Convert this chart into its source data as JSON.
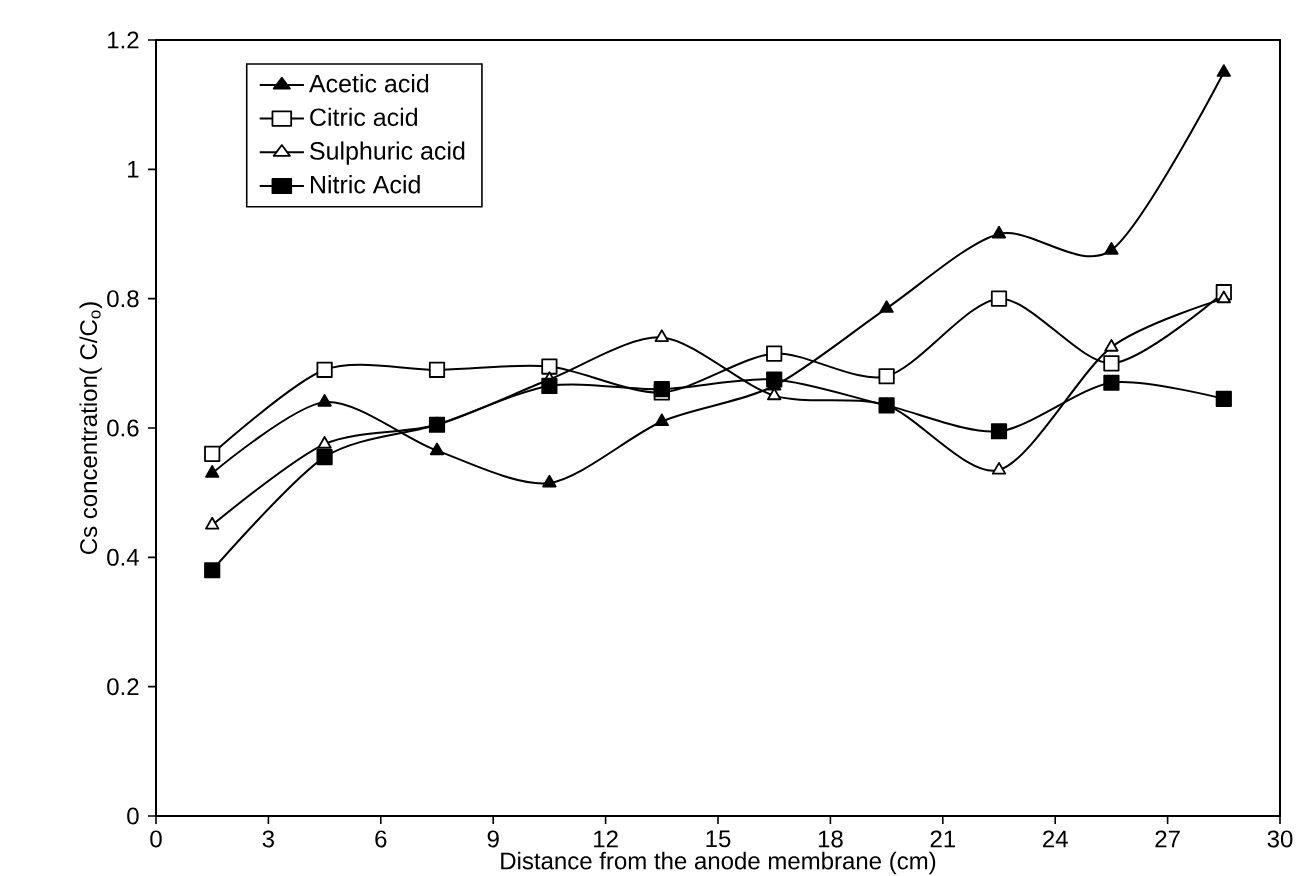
{
  "chart_data": {
    "type": "line",
    "xlabel": "Distance from the anode membrane (cm)",
    "ylabel": "Cs concentration( C/C$_{o}$)",
    "x": [
      1.5,
      4.5,
      7.5,
      10.5,
      13.5,
      16.5,
      19.5,
      22.5,
      25.5,
      28.5
    ],
    "series": [
      {
        "name": "Acetic acid",
        "color": "#000000",
        "marker": "triangle",
        "values": [
          0.53,
          0.64,
          0.565,
          0.515,
          0.61,
          0.665,
          0.785,
          0.9,
          0.875,
          1.15
        ]
      },
      {
        "name": "Citric acid",
        "color": "#000000",
        "marker": "square",
        "values": [
          0.56,
          0.69,
          0.69,
          0.695,
          0.655,
          0.715,
          0.68,
          0.8,
          0.7,
          0.81
        ]
      },
      {
        "name": "Sulphuric acid",
        "color": "#000000",
        "marker": "triangle",
        "values": [
          0.45,
          0.575,
          0.605,
          0.675,
          0.74,
          0.65,
          0.635,
          0.535,
          0.725,
          0.8
        ]
      },
      {
        "name": "Nitric Acid",
        "color": "#000000",
        "marker": "square",
        "values": [
          0.38,
          0.555,
          0.605,
          0.665,
          0.66,
          0.675,
          0.635,
          0.595,
          0.67,
          0.645
        ]
      }
    ],
    "xlim": [
      0,
      30
    ],
    "xticks": [
      0,
      3,
      6,
      9,
      12,
      15,
      18,
      21,
      24,
      27,
      30
    ],
    "ylim": [
      0,
      1.2
    ],
    "yticks": [
      0,
      0.2,
      0.4,
      0.6,
      0.8,
      1,
      1.2
    ],
    "grid": false,
    "legend": "top left",
    "line_style": "solid"
  }
}
